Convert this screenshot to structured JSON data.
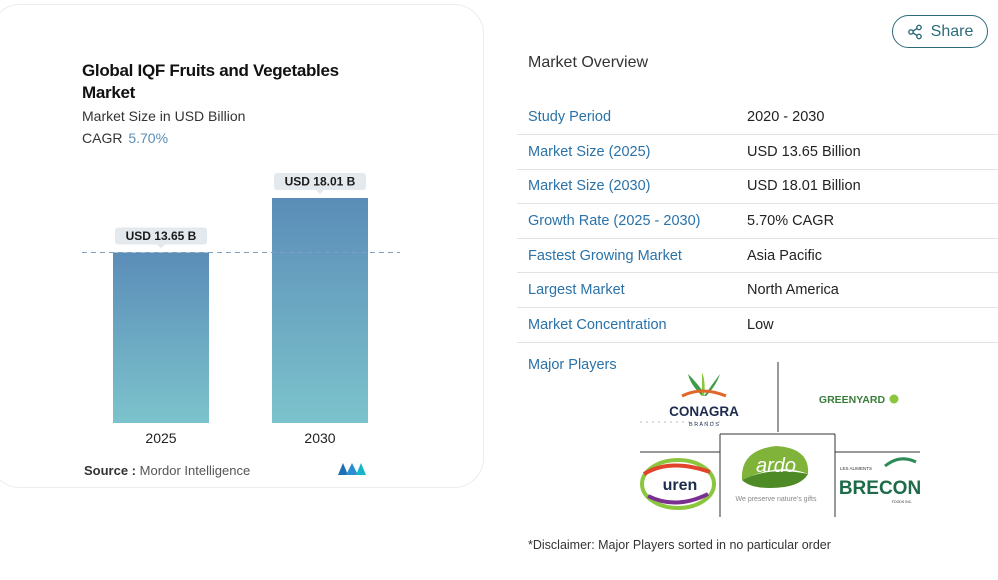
{
  "chart": {
    "title": "Global IQF Fruits and Vegetables Market",
    "subtitle": "Market Size in USD Billion",
    "cagr_label": "CAGR",
    "cagr_value": "5.70%",
    "source_label": "Source :",
    "source_value": "Mordor Intelligence"
  },
  "chart_data": {
    "type": "bar",
    "title": "Global IQF Fruits and Vegetables Market",
    "subtitle": "Market Size in USD Billion",
    "categories": [
      "2025",
      "2030"
    ],
    "values": [
      13.65,
      18.01
    ],
    "data_labels": [
      "USD 13.65 B",
      "USD 18.01 B"
    ],
    "ylim": [
      0,
      20
    ],
    "colors": {
      "bar_top": "#5b8db8",
      "bar_bottom": "#7cc3cc",
      "reference_line": "#7a9fc0"
    }
  },
  "share": {
    "label": "Share"
  },
  "overview": {
    "title": "Market Overview",
    "rows": [
      {
        "key": "Study Period",
        "value": "2020 - 2030"
      },
      {
        "key": "Market Size (2025)",
        "value": "USD 13.65 Billion"
      },
      {
        "key": "Market Size (2030)",
        "value": "USD 18.01 Billion"
      },
      {
        "key": "Growth Rate (2025 - 2030)",
        "value": "5.70% CAGR"
      },
      {
        "key": "Fastest Growing Market",
        "value": "Asia Pacific"
      },
      {
        "key": "Largest Market",
        "value": "North America"
      },
      {
        "key": "Market Concentration",
        "value": "Low"
      }
    ]
  },
  "major_players": {
    "label": "Major Players",
    "logos": {
      "conagra": "CONAGRA",
      "conagra_sub": "B R A N D S",
      "greenyard": "GREENYARD",
      "uren": "uren",
      "ardo": "ardo",
      "ardo_tagline": "We preserve nature's gifts",
      "brecon_top": "LES ALIMENTS",
      "brecon": "BRECON",
      "brecon_sub": "FOODS INC."
    }
  },
  "disclaimer": "*Disclaimer: Major Players sorted in no particular order",
  "colors": {
    "accent_blue": "#2a72a8",
    "share_teal": "#2d6b7a"
  }
}
